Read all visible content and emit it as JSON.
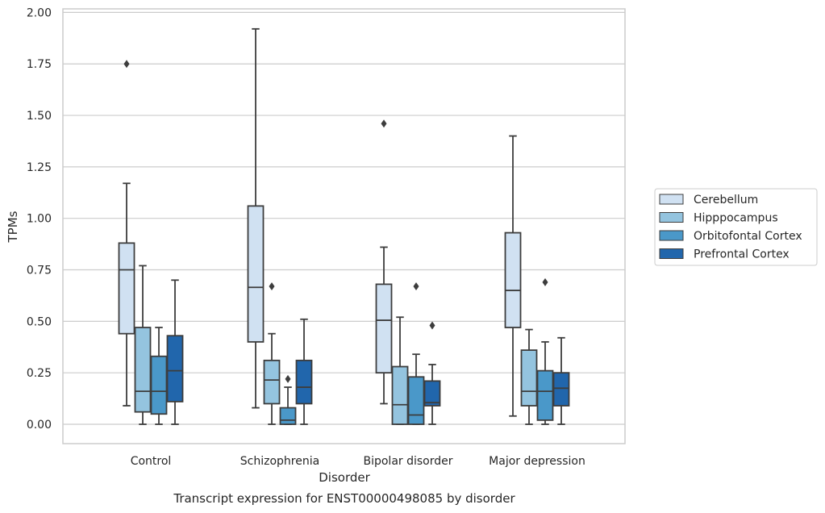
{
  "chart_data": {
    "type": "boxplot",
    "caption": "Transcript expression for ENST00000498085 by disorder",
    "xlabel": "Disorder",
    "ylabel": "TPMs",
    "ylim": [
      -0.09,
      2.02
    ],
    "yticks": [
      "0.00",
      "0.25",
      "0.50",
      "0.75",
      "1.00",
      "1.25",
      "1.50",
      "1.75",
      "2.00"
    ],
    "ytick_values": [
      0,
      0.25,
      0.5,
      0.75,
      1.0,
      1.25,
      1.5,
      1.75,
      2.0
    ],
    "categories": [
      "Control",
      "Schizophrenia",
      "Bipolar disorder",
      "Major depression"
    ],
    "grid": "horizontal",
    "legend_position": "right",
    "series": [
      {
        "name": "Cerebellum",
        "color": "#d0e1f2",
        "boxes": [
          {
            "whislo": 0.09,
            "q1": 0.44,
            "med": 0.75,
            "q3": 0.88,
            "whishi": 1.17,
            "fliers": [
              1.75
            ]
          },
          {
            "whislo": 0.08,
            "q1": 0.4,
            "med": 0.665,
            "q3": 1.06,
            "whishi": 1.92,
            "fliers": []
          },
          {
            "whislo": 0.1,
            "q1": 0.25,
            "med": 0.505,
            "q3": 0.68,
            "whishi": 0.86,
            "fliers": [
              1.46
            ]
          },
          {
            "whislo": 0.04,
            "q1": 0.47,
            "med": 0.65,
            "q3": 0.93,
            "whishi": 1.4,
            "fliers": []
          }
        ]
      },
      {
        "name": "Hipppocampus",
        "color": "#94c4df",
        "boxes": [
          {
            "whislo": 0.0,
            "q1": 0.06,
            "med": 0.16,
            "q3": 0.47,
            "whishi": 0.77,
            "fliers": []
          },
          {
            "whislo": 0.0,
            "q1": 0.1,
            "med": 0.215,
            "q3": 0.31,
            "whishi": 0.44,
            "fliers": [
              0.67
            ]
          },
          {
            "whislo": 0.0,
            "q1": 0.0,
            "med": 0.095,
            "q3": 0.28,
            "whishi": 0.52,
            "fliers": []
          },
          {
            "whislo": 0.0,
            "q1": 0.09,
            "med": 0.16,
            "q3": 0.36,
            "whishi": 0.46,
            "fliers": []
          }
        ]
      },
      {
        "name": "Orbitofontal Cortex",
        "color": "#4a98c9",
        "boxes": [
          {
            "whislo": 0.0,
            "q1": 0.05,
            "med": 0.16,
            "q3": 0.33,
            "whishi": 0.47,
            "fliers": []
          },
          {
            "whislo": 0.0,
            "q1": 0.0,
            "med": 0.02,
            "q3": 0.08,
            "whishi": 0.18,
            "fliers": [
              0.22
            ]
          },
          {
            "whislo": 0.0,
            "q1": 0.0,
            "med": 0.045,
            "q3": 0.23,
            "whishi": 0.34,
            "fliers": [
              0.67
            ]
          },
          {
            "whislo": 0.0,
            "q1": 0.02,
            "med": 0.16,
            "q3": 0.26,
            "whishi": 0.4,
            "fliers": [
              0.69
            ]
          }
        ]
      },
      {
        "name": "Prefrontal Cortex",
        "color": "#2166ac",
        "boxes": [
          {
            "whislo": 0.0,
            "q1": 0.11,
            "med": 0.26,
            "q3": 0.43,
            "whishi": 0.7,
            "fliers": []
          },
          {
            "whislo": 0.0,
            "q1": 0.1,
            "med": 0.18,
            "q3": 0.31,
            "whishi": 0.51,
            "fliers": []
          },
          {
            "whislo": 0.0,
            "q1": 0.09,
            "med": 0.105,
            "q3": 0.21,
            "whishi": 0.29,
            "fliers": [
              0.48
            ]
          },
          {
            "whislo": 0.0,
            "q1": 0.09,
            "med": 0.175,
            "q3": 0.25,
            "whishi": 0.42,
            "fliers": []
          }
        ]
      }
    ]
  }
}
